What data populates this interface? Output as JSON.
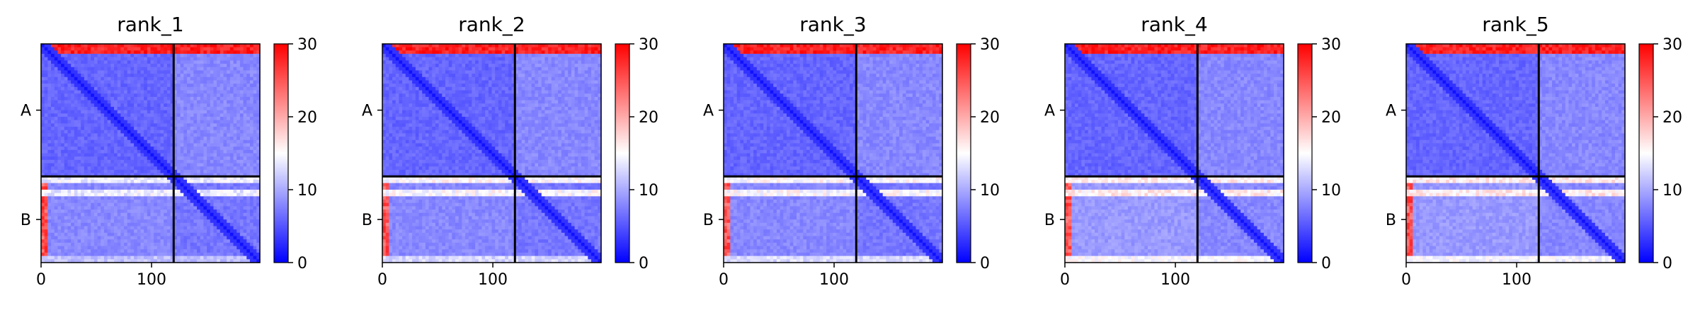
{
  "figure": {
    "panel_titles": [
      "rank_1",
      "rank_2",
      "rank_3",
      "rank_4",
      "rank_5"
    ]
  },
  "chart_data": [
    {
      "type": "heatmap",
      "title": "rank_1",
      "xlabel": "",
      "ylabel": "",
      "x_ticks": [
        0,
        100
      ],
      "x_range": [
        0,
        198
      ],
      "y_ticks": [
        "A",
        "B"
      ],
      "chain_lengths": {
        "A": 120,
        "B": 78
      },
      "chain_boundary": 120,
      "colorbar": {
        "ticks": [
          0,
          10,
          20,
          30
        ],
        "range": [
          0,
          30
        ],
        "colormap": "bwr"
      },
      "values_summary": {
        "A_first_rows": 30,
        "A_intra": 5,
        "B_intra": 6,
        "B_row_band": 12,
        "B_edge_rows": 8,
        "diagonal": 0,
        "B_first_cols": 28
      },
      "row_band_fraction": 0.14,
      "bottom_whiteness": 0.3
    },
    {
      "type": "heatmap",
      "title": "rank_2",
      "xlabel": "",
      "ylabel": "",
      "x_ticks": [
        0,
        100
      ],
      "x_range": [
        0,
        198
      ],
      "y_ticks": [
        "A",
        "B"
      ],
      "chain_lengths": {
        "A": 120,
        "B": 78
      },
      "chain_boundary": 120,
      "colorbar": {
        "ticks": [
          0,
          10,
          20,
          30
        ],
        "range": [
          0,
          30
        ],
        "colormap": "bwr"
      },
      "values_summary": {
        "A_first_rows": 30,
        "A_intra": 5,
        "B_intra": 6,
        "B_row_band": 13,
        "B_edge_rows": 9,
        "diagonal": 0,
        "B_first_cols": 28
      },
      "row_band_fraction": 0.14,
      "bottom_whiteness": 0.35
    },
    {
      "type": "heatmap",
      "title": "rank_3",
      "xlabel": "",
      "ylabel": "",
      "x_ticks": [
        0,
        100
      ],
      "x_range": [
        0,
        198
      ],
      "y_ticks": [
        "A",
        "B"
      ],
      "chain_lengths": {
        "A": 120,
        "B": 78
      },
      "chain_boundary": 120,
      "colorbar": {
        "ticks": [
          0,
          10,
          20,
          30
        ],
        "range": [
          0,
          30
        ],
        "colormap": "bwr"
      },
      "values_summary": {
        "A_first_rows": 30,
        "A_intra": 5,
        "B_intra": 6,
        "B_row_band": 13,
        "B_edge_rows": 9,
        "diagonal": 0,
        "B_first_cols": 28
      },
      "row_band_fraction": 0.14,
      "bottom_whiteness": 0.4
    },
    {
      "type": "heatmap",
      "title": "rank_4",
      "xlabel": "",
      "ylabel": "",
      "x_ticks": [
        0,
        100
      ],
      "x_range": [
        0,
        198
      ],
      "y_ticks": [
        "A",
        "B"
      ],
      "chain_lengths": {
        "A": 120,
        "B": 78
      },
      "chain_boundary": 120,
      "colorbar": {
        "ticks": [
          0,
          10,
          20,
          30
        ],
        "range": [
          0,
          30
        ],
        "colormap": "bwr"
      },
      "values_summary": {
        "A_first_rows": 30,
        "A_intra": 5,
        "B_intra": 7,
        "B_row_band": 14,
        "B_edge_rows": 10,
        "diagonal": 0,
        "B_first_cols": 28
      },
      "row_band_fraction": 0.14,
      "bottom_whiteness": 0.55
    },
    {
      "type": "heatmap",
      "title": "rank_5",
      "xlabel": "",
      "ylabel": "",
      "x_ticks": [
        0,
        100
      ],
      "x_range": [
        0,
        198
      ],
      "y_ticks": [
        "A",
        "B"
      ],
      "chain_lengths": {
        "A": 120,
        "B": 78
      },
      "chain_boundary": 120,
      "colorbar": {
        "ticks": [
          0,
          10,
          20,
          30
        ],
        "range": [
          0,
          30
        ],
        "colormap": "bwr"
      },
      "values_summary": {
        "A_first_rows": 30,
        "A_intra": 5,
        "B_intra": 7,
        "B_row_band": 14,
        "B_edge_rows": 10,
        "diagonal": 0,
        "B_first_cols": 28
      },
      "row_band_fraction": 0.14,
      "bottom_whiteness": 0.5
    }
  ]
}
